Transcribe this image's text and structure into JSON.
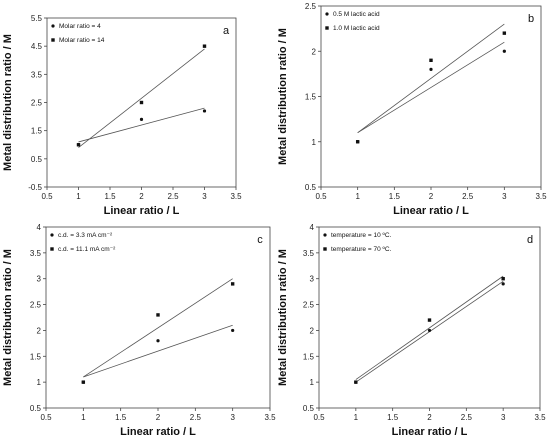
{
  "chart_data": [
    {
      "type": "scatter",
      "panel_label": "a",
      "xlabel": "Linear ratio / L",
      "ylabel": "Metal distribution ratio / M",
      "xlim": [
        0.5,
        3.5
      ],
      "ylim": [
        -0.5,
        5.5
      ],
      "xticks": [
        "0.5",
        "1",
        "1.5",
        "2",
        "2.5",
        "3",
        "3.5"
      ],
      "yticks": [
        "-0.5",
        "0.5",
        "1.5",
        "2.5",
        "3.5",
        "4.5",
        "5.5"
      ],
      "legend_position": "top-left",
      "series": [
        {
          "name": "Molar ratio = 4",
          "marker": "circle",
          "x": [
            1,
            2,
            3
          ],
          "y": [
            1.0,
            1.9,
            2.2
          ],
          "fit": [
            [
              1,
              1.1
            ],
            [
              3,
              2.3
            ]
          ]
        },
        {
          "name": "Molar ratio = 14",
          "marker": "square",
          "x": [
            1,
            2,
            3
          ],
          "y": [
            1.0,
            2.5,
            4.5
          ],
          "fit": [
            [
              1,
              0.9
            ],
            [
              3,
              4.4
            ]
          ]
        }
      ]
    },
    {
      "type": "scatter",
      "panel_label": "b",
      "xlabel": "Linear ratio / L",
      "ylabel": "Metal distribution ratio / M",
      "xlim": [
        0.5,
        3.5
      ],
      "ylim": [
        0.5,
        2.5
      ],
      "xticks": [
        "0.5",
        "1",
        "1.5",
        "2",
        "2.5",
        "3",
        "3.5"
      ],
      "yticks": [
        "0.5",
        "1",
        "1.5",
        "2",
        "2.5"
      ],
      "legend_position": "top-left",
      "series": [
        {
          "name": "0.5 M lactic acid",
          "marker": "circle",
          "x": [
            1,
            2,
            3
          ],
          "y": [
            1.0,
            1.8,
            2.0
          ],
          "fit": [
            [
              1,
              1.1
            ],
            [
              3,
              2.1
            ]
          ]
        },
        {
          "name": "1.0 M lactic acid",
          "marker": "square",
          "x": [
            1,
            2,
            3
          ],
          "y": [
            1.0,
            1.9,
            2.2
          ],
          "fit": [
            [
              1,
              1.1
            ],
            [
              3,
              2.3
            ]
          ]
        }
      ]
    },
    {
      "type": "scatter",
      "panel_label": "c",
      "xlabel": "Linear ratio / L",
      "ylabel": "Metal distribution ratio / M",
      "xlim": [
        0.5,
        3.5
      ],
      "ylim": [
        0.5,
        4
      ],
      "xticks": [
        "0.5",
        "1",
        "1.5",
        "2",
        "2.5",
        "3",
        "3.5"
      ],
      "yticks": [
        "0.5",
        "1",
        "1.5",
        "2",
        "2.5",
        "3",
        "3.5",
        "4"
      ],
      "legend_position": "top-left",
      "series": [
        {
          "name": "c.d. = 3.3 mA cm⁻²",
          "marker": "circle",
          "x": [
            1,
            2,
            3
          ],
          "y": [
            1.0,
            1.8,
            2.0
          ],
          "fit": [
            [
              1,
              1.1
            ],
            [
              3,
              2.1
            ]
          ]
        },
        {
          "name": "c.d. = 11.1 mA cm⁻²",
          "marker": "square",
          "x": [
            1,
            2,
            3
          ],
          "y": [
            1.0,
            2.3,
            2.9
          ],
          "fit": [
            [
              1,
              1.1
            ],
            [
              3,
              3.0
            ]
          ]
        }
      ]
    },
    {
      "type": "scatter",
      "panel_label": "d",
      "xlabel": "Linear ratio / L",
      "ylabel": "Metal distribution ratio / M",
      "xlim": [
        0.5,
        3.5
      ],
      "ylim": [
        0.5,
        4
      ],
      "xticks": [
        "0.5",
        "1",
        "1.5",
        "2",
        "2.5",
        "3",
        "3.5"
      ],
      "yticks": [
        "0.5",
        "1",
        "1.5",
        "2",
        "2.5",
        "3",
        "3.5",
        "4"
      ],
      "legend_position": "top-left",
      "series": [
        {
          "name": "temperature = 10 ºC.",
          "marker": "circle",
          "x": [
            1,
            2,
            3
          ],
          "y": [
            1.0,
            2.0,
            2.9
          ],
          "fit": [
            [
              1,
              1.0
            ],
            [
              3,
              2.95
            ]
          ]
        },
        {
          "name": "temperature = 70 ºC.",
          "marker": "square",
          "x": [
            1,
            2,
            3
          ],
          "y": [
            1.0,
            2.2,
            3.0
          ],
          "fit": [
            [
              1,
              1.05
            ],
            [
              3,
              3.05
            ]
          ]
        }
      ]
    }
  ]
}
